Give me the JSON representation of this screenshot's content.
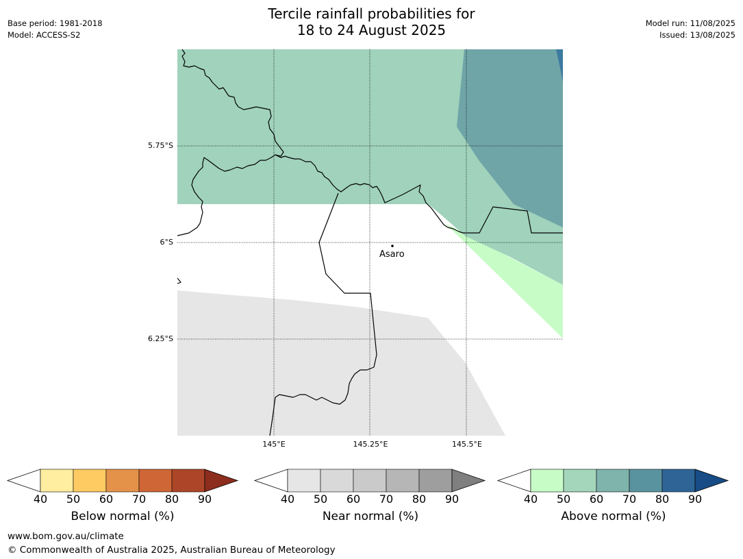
{
  "title": {
    "line1": "Tercile rainfall probabilities for",
    "line2": "18 to 24 August 2025"
  },
  "meta_left": {
    "base_period": "Base period: 1981-2018",
    "model": "Model: ACCESS-S2"
  },
  "meta_right": {
    "model_run": "Model run: 11/08/2025",
    "issued": "Issued: 13/08/2025"
  },
  "map": {
    "lat_labels": [
      "5.75°S",
      "6°S",
      "6.25°S"
    ],
    "lon_labels": [
      "145°E",
      "145.25°E",
      "145.5°E"
    ],
    "place": "Asaro"
  },
  "colorbars": [
    {
      "title": "Below normal (%)",
      "ticks": [
        "40",
        "50",
        "60",
        "70",
        "80",
        "90"
      ],
      "colors": [
        "#ffeda0",
        "#fecb63",
        "#e4924a",
        "#cf6635",
        "#ad4628"
      ],
      "extend_color": "#8c2d1e"
    },
    {
      "title": "Near normal (%)",
      "ticks": [
        "40",
        "50",
        "60",
        "70",
        "80",
        "90"
      ],
      "colors": [
        "#e6e6e6",
        "#d9d9d9",
        "#cacaca",
        "#b6b6b6",
        "#9e9e9e"
      ],
      "extend_color": "#7f7f7f"
    },
    {
      "title": "Above normal (%)",
      "ticks": [
        "40",
        "50",
        "60",
        "70",
        "80",
        "90"
      ],
      "colors": [
        "#c7fcc7",
        "#a3d6bb",
        "#7fb4ad",
        "#5a93a0",
        "#2f6596"
      ],
      "extend_color": "#174c86"
    }
  ],
  "footer": {
    "url": "www.bom.gov.au/climate",
    "copyright": "© Commonwealth of Australia 2025, Australian Bureau of Meteorology"
  }
}
